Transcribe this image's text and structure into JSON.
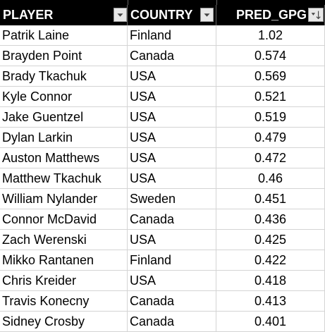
{
  "table": {
    "header": [
      "PLAYER",
      "COUNTRY",
      "PRED_GPG"
    ],
    "rows": [
      [
        "Patrik Laine",
        "Finland",
        1.02
      ],
      [
        "Brayden Point",
        "Canada",
        0.574
      ],
      [
        "Brady Tkachuk",
        "USA",
        0.569
      ],
      [
        "Kyle Connor",
        "USA",
        0.521
      ],
      [
        "Jake Guentzel",
        "USA",
        0.519
      ],
      [
        "Dylan Larkin",
        "USA",
        0.479
      ],
      [
        "Auston Matthews",
        "USA",
        0.472
      ],
      [
        "Matthew Tkachuk",
        "USA",
        0.46
      ],
      [
        "William Nylander",
        "Sweden",
        0.451
      ],
      [
        "Connor McDavid",
        "Canada",
        0.436
      ],
      [
        "Zach Werenski",
        "USA",
        0.425
      ],
      [
        "Mikko Rantanen",
        "Finland",
        0.422
      ],
      [
        "Chris Kreider",
        "USA",
        0.418
      ],
      [
        "Travis Konecny",
        "Canada",
        0.413
      ],
      [
        "Sidney Crosby",
        "Canada",
        0.401
      ]
    ]
  }
}
